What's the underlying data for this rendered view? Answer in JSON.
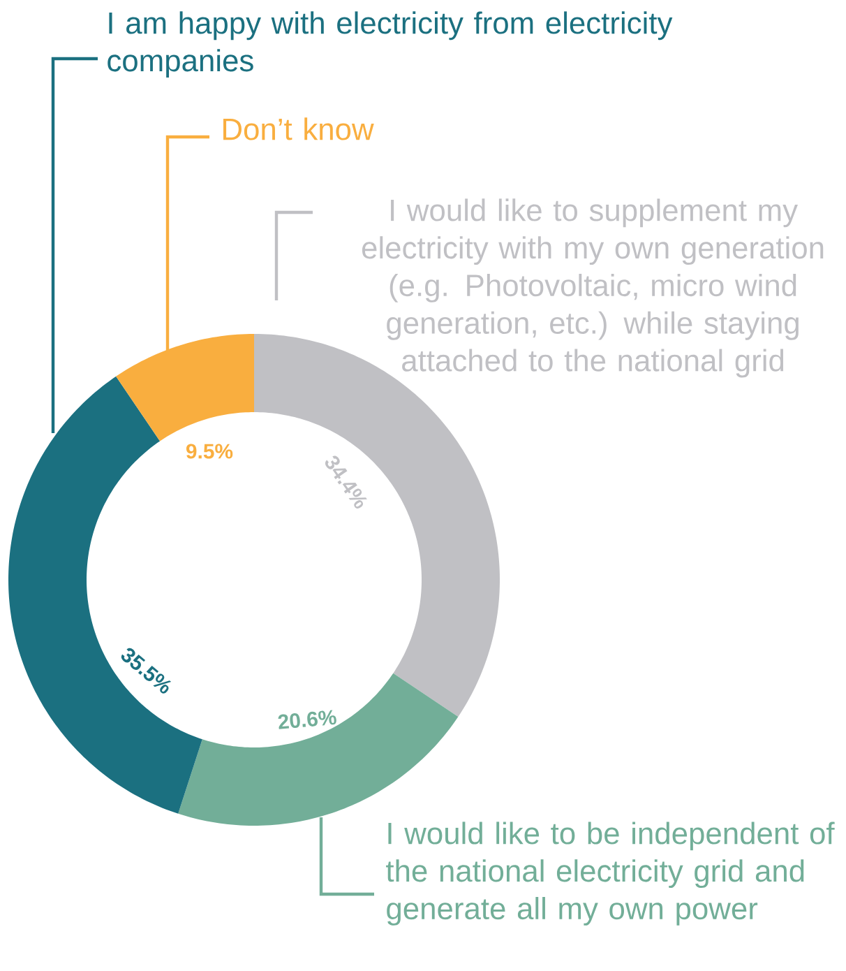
{
  "chart_data": {
    "type": "donut",
    "categories": [
      "I would like to supplement my electricity with my own generation (e.g. Photovoltaic, micro wind generation, etc.) while staying attached to the national grid",
      "I would like to be independent of the national electricity grid and generate all my own power",
      "I am happy with electricity from electricity companies",
      "Don’t know"
    ],
    "values": [
      34.4,
      20.6,
      35.5,
      9.5
    ],
    "colors": [
      "#c0c0c4",
      "#72ae98",
      "#1b7080",
      "#f9ae3f"
    ],
    "value_labels": [
      "34.4%",
      "20.6%",
      "35.5%",
      "9.5%"
    ]
  }
}
